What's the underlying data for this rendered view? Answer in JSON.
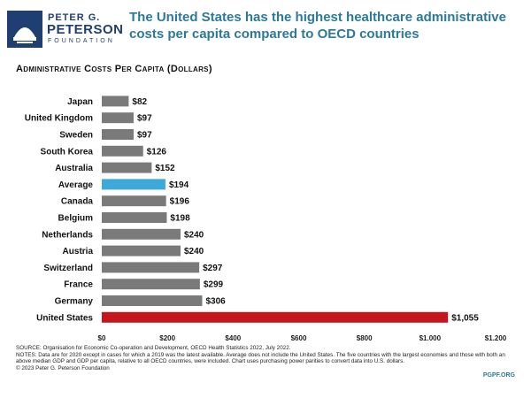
{
  "logo": {
    "line1": "PETER G.",
    "line2": "PETERSON",
    "line3": "FOUNDATION"
  },
  "title": "The United States has the highest healthcare administrative costs per capita compared to OECD countries",
  "subtitle": "Administrative Costs Per Capita (Dollars)",
  "chart_data": {
    "type": "bar",
    "orientation": "horizontal",
    "categories": [
      "Japan",
      "United Kingdom",
      "Sweden",
      "South Korea",
      "Australia",
      "Average",
      "Canada",
      "Belgium",
      "Netherlands",
      "Austria",
      "Switzerland",
      "France",
      "Germany",
      "United States"
    ],
    "values": [
      82,
      97,
      97,
      126,
      152,
      194,
      196,
      198,
      240,
      240,
      297,
      299,
      306,
      1055
    ],
    "value_labels": [
      "$82",
      "$97",
      "$97",
      "$126",
      "$152",
      "$194",
      "$196",
      "$198",
      "$240",
      "$240",
      "$297",
      "$299",
      "$306",
      "$1,055"
    ],
    "xlim": [
      0,
      1200
    ],
    "xticks": [
      0,
      200,
      400,
      600,
      800,
      1000,
      1200
    ],
    "xtick_labels": [
      "$0",
      "$200",
      "$400",
      "$600",
      "$800",
      "$1,000",
      "$1,200"
    ],
    "grid": false,
    "colors": {
      "default": "#7a7a7a",
      "Average": "#3ea9d8",
      "United States": "#c4161c"
    }
  },
  "footnotes": [
    "SOURCE: Organisation for Economic Co-operation and Development, OECD Health Statistics 2022, July 2022.",
    "NOTES: Data are for 2020 except in cases for which a 2019 was the latest available. Average does not include the United States. The five countries with the largest economies and those with both an above median GDP and GDP per capita, relative to all OECD countries, were included. Chart uses purchasing power parities to convert data into U.S. dollars.",
    "© 2023 Peter G. Peterson Foundation"
  ],
  "tag": "PGPF.ORG",
  "colors": {
    "brand_blue": "#1f3f73",
    "title_teal": "#2c7a9a"
  }
}
